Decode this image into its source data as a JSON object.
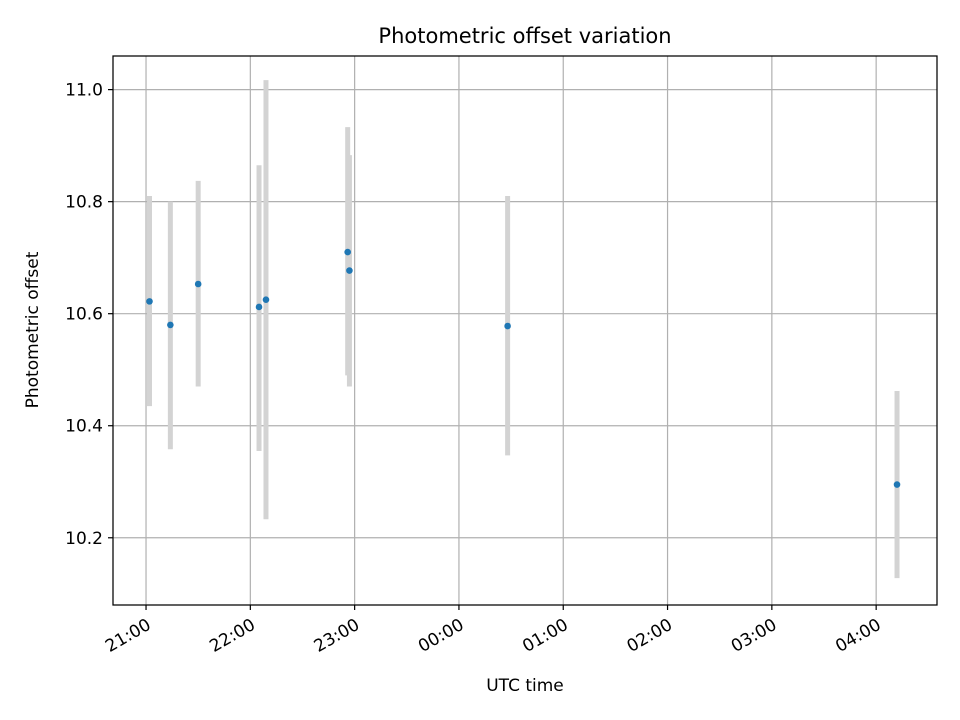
{
  "chart_data": {
    "type": "scatter",
    "title": "Photometric offset variation",
    "xlabel": "UTC time",
    "ylabel": "Photometric offset",
    "x_ticks": [
      "21:00",
      "22:00",
      "23:00",
      "00:00",
      "01:00",
      "02:00",
      "03:00",
      "04:00"
    ],
    "y_ticks": [
      "10.2",
      "10.4",
      "10.6",
      "10.8",
      "11.0"
    ],
    "xlim": [
      "20:41",
      "04:35"
    ],
    "ylim": [
      10.08,
      11.06
    ],
    "grid": true,
    "colors": {
      "point": "#1f77b4",
      "errorbar": "#d3d3d3",
      "grid": "#b0b0b0",
      "axes": "#000000"
    },
    "points": [
      {
        "time": "21:02",
        "value": 10.622,
        "low": 10.435,
        "high": 10.81
      },
      {
        "time": "21:14",
        "value": 10.58,
        "low": 10.358,
        "high": 10.8
      },
      {
        "time": "21:30",
        "value": 10.653,
        "low": 10.47,
        "high": 10.837
      },
      {
        "time": "22:05",
        "value": 10.612,
        "low": 10.355,
        "high": 10.865
      },
      {
        "time": "22:09",
        "value": 10.625,
        "low": 10.233,
        "high": 11.017
      },
      {
        "time": "22:56",
        "value": 10.71,
        "low": 10.49,
        "high": 10.933
      },
      {
        "time": "22:57",
        "value": 10.677,
        "low": 10.47,
        "high": 10.883
      },
      {
        "time": "00:28",
        "value": 10.578,
        "low": 10.347,
        "high": 10.81
      },
      {
        "time": "04:12",
        "value": 10.295,
        "low": 10.128,
        "high": 10.462
      }
    ]
  }
}
